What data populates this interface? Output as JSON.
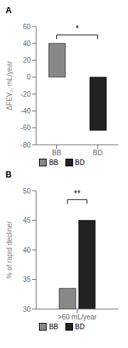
{
  "chart_data": [
    {
      "type": "bar",
      "title": "A",
      "categories": [
        "BB",
        "BD"
      ],
      "values": [
        40,
        -63
      ],
      "colors": [
        "#888888",
        "#222222"
      ],
      "ylabel": "ΔFEV₁, mL/year",
      "ylim": [
        -80,
        60
      ],
      "yticks": [
        -80,
        -60,
        -40,
        -20,
        0,
        20,
        40,
        60
      ],
      "legend": "bottom",
      "annotations": [
        {
          "text": "*",
          "y": 50
        }
      ]
    },
    {
      "type": "bar",
      "title": "B",
      "categories": [
        ">60 mL/year"
      ],
      "series": [
        {
          "name": "BB",
          "color": "#888888",
          "values": [
            33.5
          ]
        },
        {
          "name": "BD",
          "color": "#222222",
          "values": [
            45.0
          ]
        }
      ],
      "ylabel": "% of rapid decliner",
      "ylim": [
        30,
        50
      ],
      "yticks": [
        30,
        35,
        40,
        45,
        50
      ],
      "legend": "bottom",
      "annotations": [
        {
          "text": "**",
          "y": 48.5
        }
      ]
    }
  ]
}
